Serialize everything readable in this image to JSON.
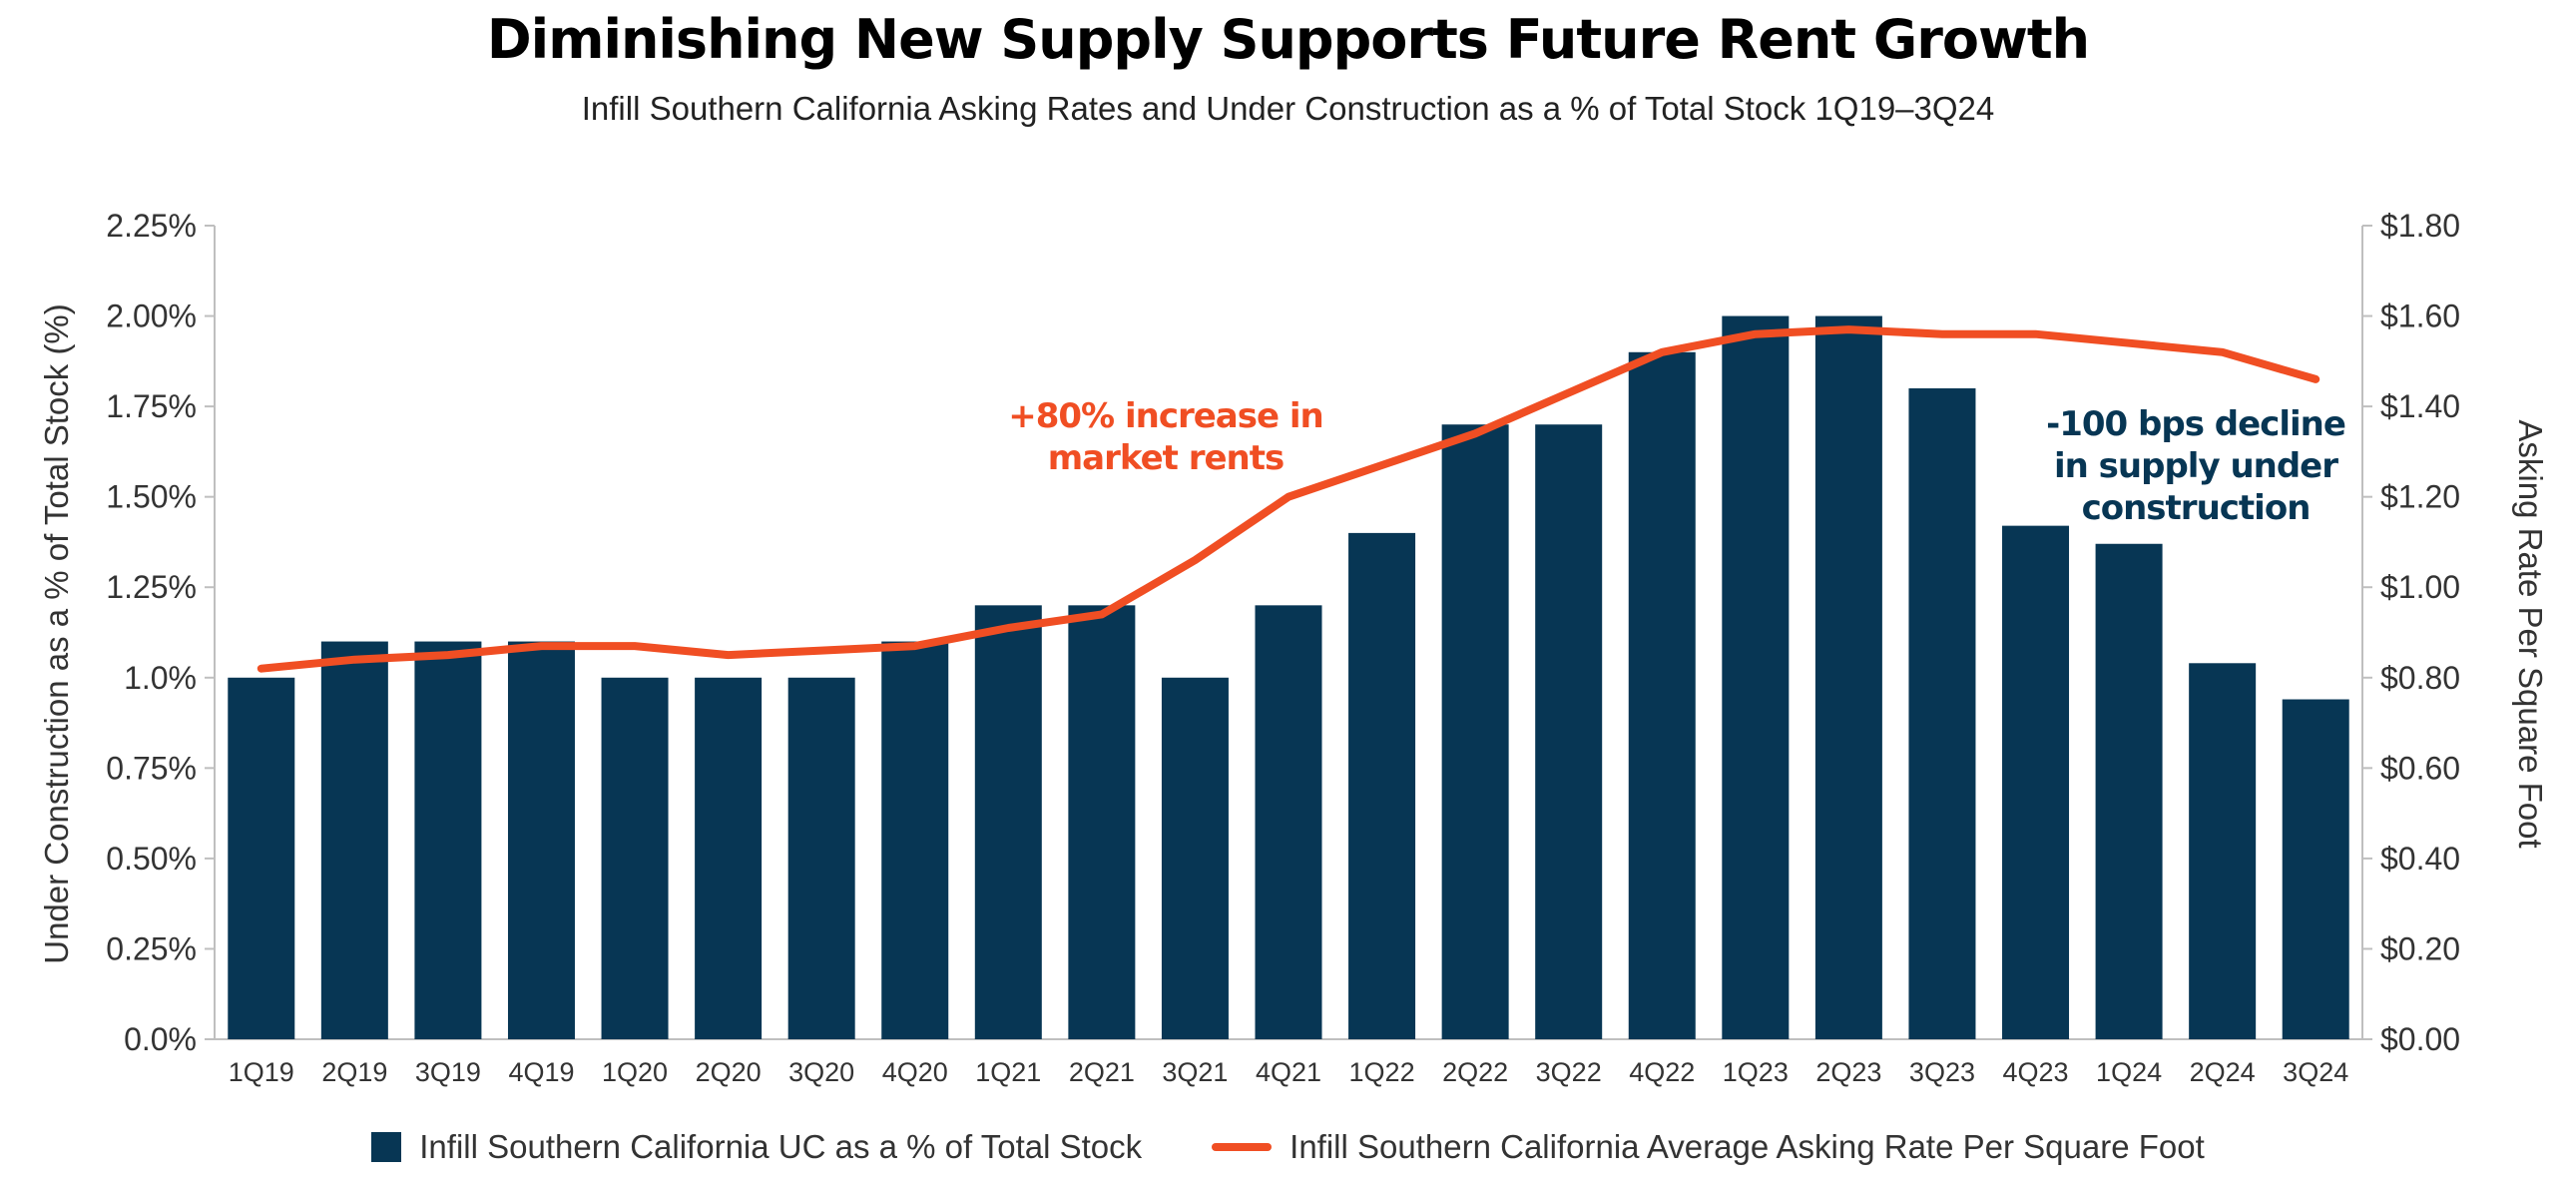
{
  "colors": {
    "bar": "#073654",
    "line": "#F04E23",
    "annotation_bar": "#073654",
    "annotation_line": "#F04E23",
    "axis": "#BFBFBF"
  },
  "chart_data": {
    "type": "bar",
    "title": "Diminishing New Supply Supports Future Rent Growth",
    "subtitle": "Infill Southern California Asking Rates and Under Construction as a % of Total Stock 1Q19–3Q24",
    "ylabel": "Under Construction as a % of Total Stock (%)",
    "y2label": "Asking Rate Per Square Foot",
    "ylim": [
      0,
      2.25
    ],
    "y2lim": [
      0,
      1.8
    ],
    "yticks": [
      "0.0%",
      "0.25%",
      "0.50%",
      "0.75%",
      "1.0%",
      "1.25%",
      "1.50%",
      "1.75%",
      "2.00%",
      "2.25%"
    ],
    "y2ticks": [
      "$0.00",
      "$0.20",
      "$0.40",
      "$0.60",
      "$0.80",
      "$1.00",
      "$1.20",
      "$1.40",
      "$1.60",
      "$1.80"
    ],
    "categories": [
      "1Q19",
      "2Q19",
      "3Q19",
      "4Q19",
      "1Q20",
      "2Q20",
      "3Q20",
      "4Q20",
      "1Q21",
      "2Q21",
      "3Q21",
      "4Q21",
      "1Q22",
      "2Q22",
      "3Q22",
      "4Q22",
      "1Q23",
      "2Q23",
      "3Q23",
      "4Q23",
      "1Q24",
      "2Q24",
      "3Q24"
    ],
    "series": [
      {
        "name": "Infill Southern California UC as a % of Total Stock",
        "kind": "bar",
        "axis": "left",
        "values": [
          1.0,
          1.1,
          1.1,
          1.1,
          1.0,
          1.0,
          1.0,
          1.1,
          1.2,
          1.2,
          1.0,
          1.2,
          1.4,
          1.7,
          1.7,
          1.9,
          2.0,
          2.0,
          1.8,
          1.42,
          1.37,
          1.04,
          0.94
        ]
      },
      {
        "name": "Infill Southern California Average Asking Rate Per Square Foot",
        "kind": "line",
        "axis": "right",
        "values": [
          0.82,
          0.84,
          0.85,
          0.87,
          0.87,
          0.85,
          0.86,
          0.87,
          0.91,
          0.94,
          1.06,
          1.2,
          1.27,
          1.34,
          1.43,
          1.52,
          1.56,
          1.57,
          1.56,
          1.56,
          1.54,
          1.52,
          1.46
        ]
      }
    ],
    "annotations": [
      {
        "lines": [
          "+80% increase in",
          "market rents"
        ],
        "color": "line"
      },
      {
        "lines": [
          "-100 bps decline",
          "in supply under",
          "construction"
        ],
        "color": "bar"
      }
    ],
    "grid": false,
    "legend_position": "bottom"
  }
}
